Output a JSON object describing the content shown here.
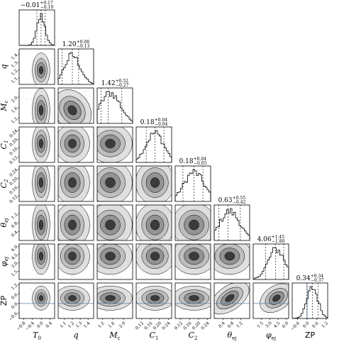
{
  "chart_data": {
    "type": "corner",
    "parameters": [
      {
        "key": "T0",
        "label_main": "T",
        "label_sub": "0",
        "italic": true,
        "ticks": [
          "−0.8",
          "−0.4",
          "0.0",
          "0.4"
        ],
        "tick_values": [
          -0.8,
          -0.4,
          0.0,
          0.4
        ],
        "range": [
          -1.0,
          0.6
        ],
        "median": -0.01,
        "plus": "0.17",
        "minus": "0.19",
        "title_value": "−0.01",
        "dist_mean": -0.01,
        "dist_sd": 0.18
      },
      {
        "key": "q",
        "label_main": "q",
        "label_sub": "",
        "italic": true,
        "ticks": [
          "1.1",
          "1.2",
          "1.3",
          "1.4"
        ],
        "tick_values": [
          1.1,
          1.2,
          1.3,
          1.4
        ],
        "range": [
          1.02,
          1.47
        ],
        "median": 1.2,
        "plus": "0.08",
        "minus": "0.13",
        "title_value": "1.20",
        "dist_mean": 1.2,
        "dist_sd": 0.1
      },
      {
        "key": "Mc",
        "label_main": "M",
        "label_sub": "c",
        "italic": true,
        "ticks": [
          "1.2",
          "1.6",
          "2.0"
        ],
        "tick_values": [
          1.2,
          1.6,
          2.0
        ],
        "range": [
          1.0,
          2.35
        ],
        "median": 1.42,
        "plus": "0.52",
        "minus": "0.27",
        "title_value": "1.42",
        "dist_mean": 1.5,
        "dist_sd": 0.38
      },
      {
        "key": "C1",
        "label_main": "C",
        "label_sub": "1",
        "italic": true,
        "ticks": [
          "0.12",
          "0.16",
          "0.20",
          "0.24"
        ],
        "tick_values": [
          0.12,
          0.16,
          0.2,
          0.24
        ],
        "range": [
          0.095,
          0.255
        ],
        "median": 0.18,
        "plus": "0.04",
        "minus": "0.04",
        "title_value": "0.18",
        "dist_mean": 0.18,
        "dist_sd": 0.04
      },
      {
        "key": "C2",
        "label_main": "C",
        "label_sub": "2",
        "italic": true,
        "ticks": [
          "0.12",
          "0.16",
          "0.20",
          "0.24"
        ],
        "tick_values": [
          0.12,
          0.16,
          0.2,
          0.24
        ],
        "range": [
          0.095,
          0.255
        ],
        "median": 0.18,
        "plus": "0.04",
        "minus": "0.05",
        "title_value": "0.18",
        "dist_mean": 0.18,
        "dist_sd": 0.045
      },
      {
        "key": "theta_ej",
        "label_main": "θ",
        "label_sub": "ej",
        "italic": true,
        "ticks": [
          "0.4",
          "0.8",
          "1.2"
        ],
        "tick_values": [
          0.4,
          0.8,
          1.2
        ],
        "range": [
          0.0,
          1.6
        ],
        "median": 0.63,
        "plus": "0.55",
        "minus": "0.42",
        "title_value": "0.63",
        "dist_mean": 0.7,
        "dist_sd": 0.45
      },
      {
        "key": "phi_ej",
        "label_main": "φ",
        "label_sub": "ej",
        "italic": true,
        "ticks": [
          "1.5",
          "3.0",
          "4.5",
          "6.0"
        ],
        "tick_values": [
          1.5,
          3.0,
          4.5,
          6.0
        ],
        "range": [
          0.0,
          6.4
        ],
        "median": 4.06,
        "plus": "1.45",
        "minus": "1.80",
        "title_value": "4.06",
        "dist_mean": 4.2,
        "dist_sd": 1.5
      },
      {
        "key": "ZP",
        "label_main": "ZP",
        "label_sub": "",
        "italic": false,
        "ticks": [
          "−0.6",
          "0.0",
          "0.6",
          "1.2"
        ],
        "tick_values": [
          -0.6,
          0.0,
          0.6,
          1.2
        ],
        "range": [
          -0.95,
          1.3
        ],
        "median": 0.34,
        "plus": "0.34",
        "minus": "0.37",
        "title_value": "0.34",
        "dist_mean": 0.34,
        "dist_sd": 0.35
      }
    ],
    "true_value_ZP": 0.0,
    "colors": {
      "hist": "#000000",
      "contour": "#000000",
      "truth_line": "#5b7ea8",
      "fill_light": "#d9d9d9",
      "fill_mid": "#8c8c8c",
      "fill_dark": "#2b2b2b"
    }
  }
}
